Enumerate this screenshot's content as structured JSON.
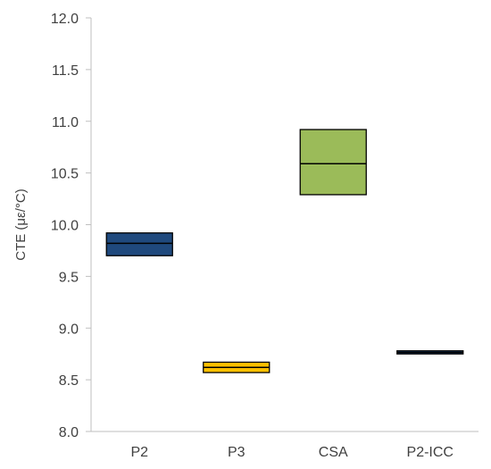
{
  "chart_data": {
    "type": "bar",
    "subtype": "floating-range-box",
    "ylabel": "CTE  (με/°C)",
    "ylim": [
      8.0,
      12.0
    ],
    "y_ticks": [
      "8.0",
      "8.5",
      "9.0",
      "9.5",
      "10.0",
      "10.5",
      "11.0",
      "11.5",
      "12.0"
    ],
    "y_tick_values": [
      8.0,
      8.5,
      9.0,
      9.5,
      10.0,
      10.5,
      11.0,
      11.5,
      12.0
    ],
    "grid": false,
    "categories": [
      "P2",
      "P3",
      "CSA",
      "P2-ICC"
    ],
    "series": [
      {
        "low": [
          9.7,
          8.57,
          10.29,
          8.75
        ],
        "mid": [
          9.82,
          8.62,
          10.59,
          8.765
        ],
        "high": [
          9.92,
          8.67,
          10.92,
          8.78
        ],
        "colors": [
          "#1f497d",
          "#ffc000",
          "#9bbb59",
          "#1f497d"
        ]
      }
    ]
  }
}
